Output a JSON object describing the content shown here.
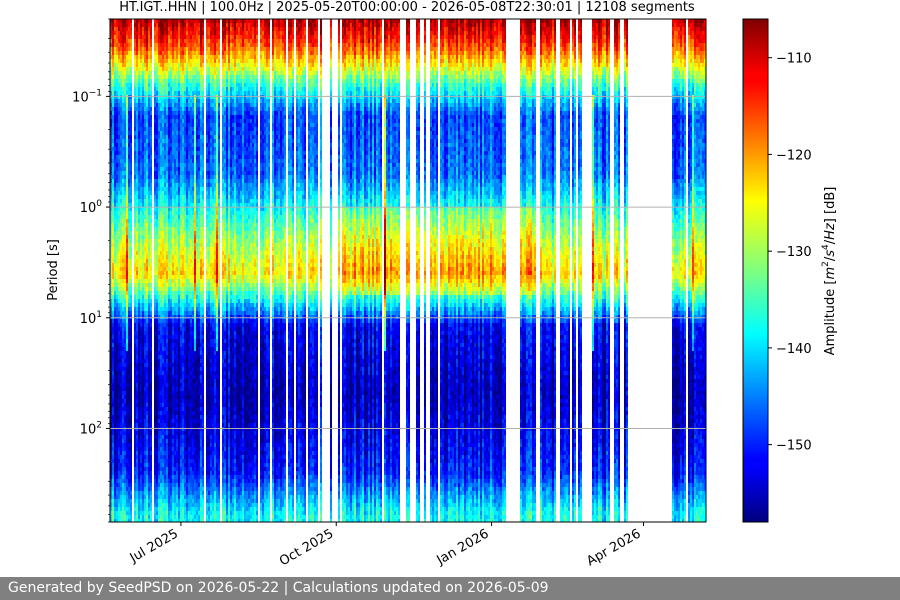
{
  "chart_data": {
    "type": "heatmap",
    "title": "HT.IGT..HHN | 100.0Hz | 2025-05-20T00:00:00 - 2026-05-08T22:30:01 | 12108 segments",
    "xlabel": "",
    "ylabel": "Period [s]",
    "x_range": [
      "2025-05-20",
      "2026-05-08"
    ],
    "y_range": [
      0.02,
      700
    ],
    "y_scale": "log",
    "y_inverted": true,
    "grid": "horizontal major lines",
    "x_ticks": [
      {
        "date": "2025-07-01",
        "label": "Jul 2025"
      },
      {
        "date": "2025-10-01",
        "label": "Oct 2025"
      },
      {
        "date": "2026-01-01",
        "label": "Jan 2026"
      },
      {
        "date": "2026-04-01",
        "label": "Apr 2026"
      }
    ],
    "y_ticks": [
      {
        "value": 0.1,
        "base": "10",
        "exp": "−1"
      },
      {
        "value": 1,
        "base": "10",
        "exp": "0"
      },
      {
        "value": 10,
        "base": "10",
        "exp": "1"
      },
      {
        "value": 100,
        "base": "10",
        "exp": "2"
      }
    ],
    "colorbar": {
      "label": "Amplitude [m²/s⁴/Hz] [dB]",
      "label_parts": [
        "Amplitude [",
        "m",
        "2",
        "/",
        "s",
        "4",
        "/",
        "Hz",
        "] [dB]"
      ],
      "colormap": "jet",
      "range": [
        -158,
        -106
      ],
      "ticks": [
        {
          "value": -110,
          "label": "−110"
        },
        {
          "value": -120,
          "label": "−120"
        },
        {
          "value": -130,
          "label": "−130"
        },
        {
          "value": -140,
          "label": "−140"
        },
        {
          "value": -150,
          "label": "−150"
        }
      ]
    },
    "amplitude_profile_db": [
      {
        "period": 0.02,
        "amplitude": -108
      },
      {
        "period": 0.035,
        "amplitude": -116
      },
      {
        "period": 0.05,
        "amplitude": -124
      },
      {
        "period": 0.08,
        "amplitude": -136
      },
      {
        "period": 0.15,
        "amplitude": -148
      },
      {
        "period": 0.5,
        "amplitude": -146
      },
      {
        "period": 2,
        "amplitude": -130
      },
      {
        "period": 4,
        "amplitude": -124
      },
      {
        "period": 7,
        "amplitude": -138
      },
      {
        "period": 12,
        "amplitude": -152
      },
      {
        "period": 50,
        "amplitude": -155
      },
      {
        "period": 250,
        "amplitude": -150
      },
      {
        "period": 600,
        "amplitude": -138
      }
    ],
    "data_gaps": [
      [
        "2025-09-23",
        "2025-09-27"
      ],
      [
        "2025-09-28",
        "2025-10-02"
      ],
      [
        "2025-11-08",
        "2025-11-11"
      ],
      [
        "2025-11-14",
        "2025-11-16"
      ],
      [
        "2025-11-20",
        "2025-11-22"
      ],
      [
        "2025-11-23",
        "2025-11-25"
      ],
      [
        "2025-11-30",
        "2025-12-02"
      ],
      [
        "2026-01-09",
        "2026-01-18"
      ],
      [
        "2026-01-27",
        "2026-01-29"
      ],
      [
        "2026-02-08",
        "2026-02-10"
      ],
      [
        "2026-02-24",
        "2026-03-01"
      ],
      [
        "2026-03-12",
        "2026-03-14"
      ],
      [
        "2026-03-23",
        "2026-04-02"
      ],
      [
        "2026-04-03",
        "2026-04-18"
      ]
    ]
  },
  "footer": {
    "text": "Generated by SeedPSD on 2026-05-22 | Calculations updated on 2026-05-09"
  }
}
